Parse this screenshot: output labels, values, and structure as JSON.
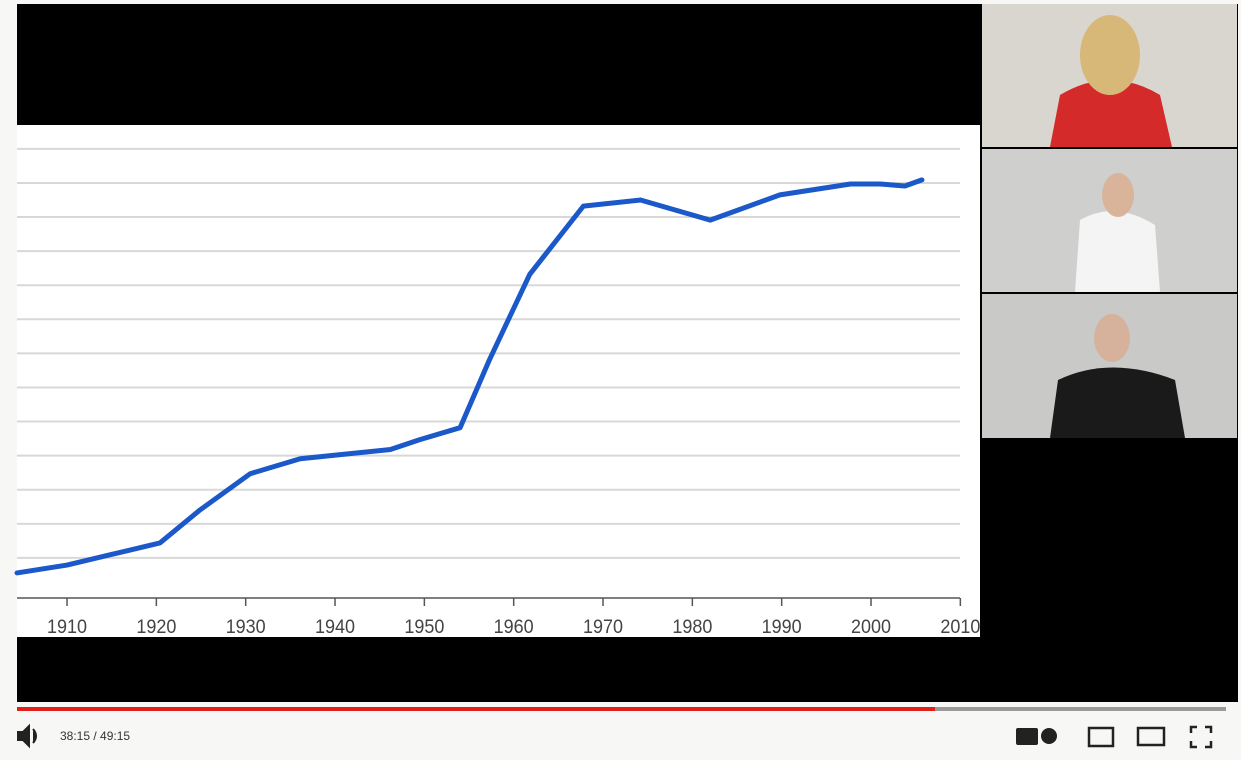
{
  "player": {
    "time": "38:15 / 49:15"
  },
  "chart_data": {
    "type": "line",
    "x": [
      1904.4,
      1910,
      1914.8,
      1920.4,
      1924.9,
      1930.5,
      1936.1,
      1940.6,
      1946.2,
      1949.5,
      1954.0,
      1957.3,
      1961.8,
      1967.8,
      1974.2,
      1982.0,
      1989.8,
      1997.7,
      2001.0,
      2003.8,
      2005.7
    ],
    "values": [
      0.56,
      0.79,
      1.09,
      1.44,
      2.41,
      3.47,
      3.91,
      4.03,
      4.18,
      4.47,
      4.82,
      6.82,
      9.32,
      11.32,
      11.5,
      10.91,
      11.65,
      11.97,
      11.97,
      11.91,
      12.09
    ],
    "color": "#1b58c9",
    "xlim": [
      1904.4,
      2012.2
    ],
    "xticks": [
      1910,
      1920,
      1930,
      1940,
      1950,
      1960,
      1970,
      1980,
      1990,
      2000,
      2010
    ],
    "ylim": [
      0,
      13.7
    ],
    "ygrid": [
      1,
      2,
      3,
      4,
      5,
      6,
      7,
      8,
      9,
      10,
      11,
      12,
      13
    ]
  }
}
